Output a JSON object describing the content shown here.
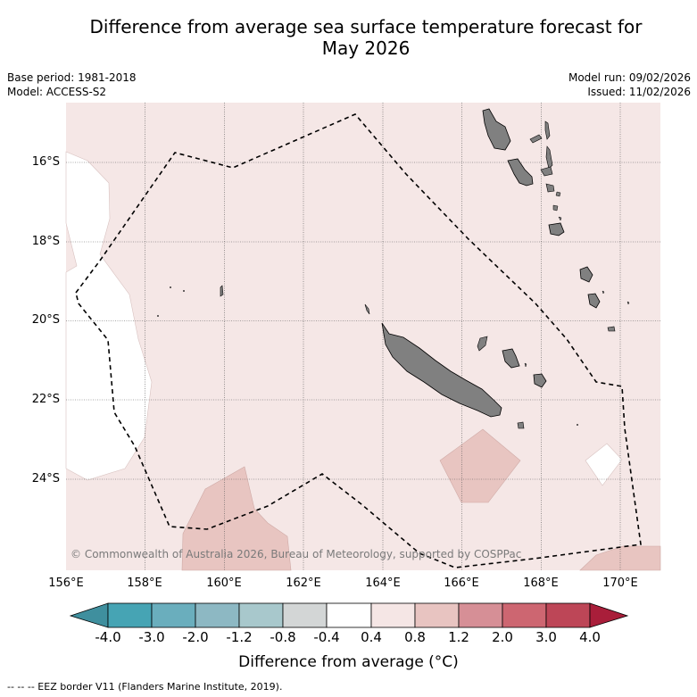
{
  "title_line1": "Difference from average sea surface temperature forecast for",
  "title_line2": "May 2026",
  "base_period": "Base period: 1981-2018",
  "model": "Model: ACCESS-S2",
  "model_run": "Model run: 09/02/2026",
  "issued": "Issued: 11/02/2026",
  "copyright": "© Commonwealth of Australia 2026, Bureau of Meteorology, supported by COSPPac",
  "lat_labels": [
    "16°S",
    "18°S",
    "20°S",
    "22°S",
    "24°S"
  ],
  "lon_labels": [
    "156°E",
    "158°E",
    "160°E",
    "162°E",
    "164°E",
    "166°E",
    "168°E",
    "170°E"
  ],
  "colorbar": {
    "ticks": [
      "-4.0",
      "-3.0",
      "-2.0",
      "-1.2",
      "-0.8",
      "-0.4",
      "0.4",
      "0.8",
      "1.2",
      "2.0",
      "3.0",
      "4.0"
    ],
    "colors": [
      "#3f8f9e",
      "#46a4b4",
      "#6aaebd",
      "#8db8c3",
      "#a8c8cc",
      "#d3d6d6",
      "#ffffff",
      "#f5e6e5",
      "#e8c4c1",
      "#d68f96",
      "#cd6671",
      "#bd4657",
      "#a91e3a"
    ],
    "title": "Difference from average (°C)"
  },
  "legend_text": "--  --  -- EEZ border V11 (Flanders Marine Institute, 2019).",
  "map_colors": {
    "warm_light": "#f5e7e6",
    "warm_medium": "#e8c5c1",
    "neutral": "#ffffff",
    "land": "#808080"
  }
}
